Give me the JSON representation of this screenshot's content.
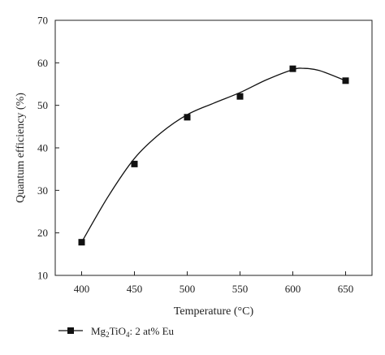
{
  "chart_data": {
    "type": "scatter",
    "title": "",
    "xlabel": "Temperature (°C)",
    "ylabel": "Quantum efficiency (%)",
    "xlim": [
      375,
      675
    ],
    "ylim": [
      10,
      70
    ],
    "xticks": [
      400,
      450,
      500,
      550,
      600,
      650
    ],
    "yticks": [
      10,
      20,
      30,
      40,
      50,
      60,
      70
    ],
    "grid": false,
    "legend_position": "bottom-left",
    "series": [
      {
        "name": "Mg2TiO4: 2 at% Eu",
        "marker": "square",
        "line": "smooth-fit",
        "x": [
          400,
          450,
          500,
          550,
          600,
          650
        ],
        "y": [
          17.8,
          36.2,
          47.2,
          52.1,
          58.6,
          55.8
        ]
      }
    ],
    "fit_curve": {
      "x": [
        400,
        425,
        450,
        475,
        500,
        525,
        550,
        575,
        600,
        610,
        625,
        650
      ],
      "y": [
        17.8,
        28.5,
        37.5,
        43.5,
        47.8,
        50.5,
        53.0,
        56.0,
        58.4,
        58.7,
        58.2,
        55.8
      ]
    },
    "colors": {
      "marker": "#111111",
      "line": "#111111",
      "axis": "#222222"
    }
  },
  "legend": {
    "prefix": "Mg",
    "sub1": "2",
    "mid": "TiO",
    "sub2": "4",
    "suffix": ": 2 at% Eu"
  }
}
